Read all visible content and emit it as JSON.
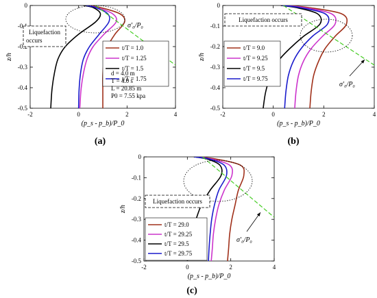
{
  "figure": {
    "panel_labels": [
      "(a)",
      "(b)",
      "(c)"
    ]
  },
  "chart_data": [
    {
      "panel": "(a)",
      "type": "line",
      "xlabel": "(p_s - p_b)/P_0",
      "ylabel": "z/h",
      "xlim": [
        -2,
        4
      ],
      "ylim": [
        -0.5,
        0
      ],
      "xticks": [
        -2,
        0,
        2,
        4
      ],
      "yticks": [
        0,
        -0.1,
        -0.2,
        -0.3,
        -0.4,
        -0.5
      ],
      "grid": false,
      "legend_position": "middle-right",
      "series": [
        {
          "name": "t/T = 1.0",
          "color": "#a0301a",
          "x": [
            0.4,
            0.9,
            1.7,
            1.9,
            1.5,
            1.2,
            1.05,
            1.0,
            1.0,
            1.0
          ],
          "y": [
            0,
            -0.01,
            -0.04,
            -0.08,
            -0.14,
            -0.2,
            -0.27,
            -0.34,
            -0.42,
            -0.5
          ]
        },
        {
          "name": "t/T = 1.25",
          "color": "#cc33cc",
          "x": [
            0.3,
            0.75,
            1.4,
            1.55,
            1.05,
            0.6,
            0.35,
            0.2,
            0.1,
            0.05
          ],
          "y": [
            0,
            -0.01,
            -0.04,
            -0.08,
            -0.14,
            -0.2,
            -0.26,
            -0.33,
            -0.41,
            -0.5
          ]
        },
        {
          "name": "t/T = 1.5",
          "color": "#000000",
          "x": [
            0.2,
            0.6,
            0.9,
            0.7,
            0.0,
            -0.55,
            -0.85,
            -1.0,
            -1.1,
            -1.15
          ],
          "y": [
            0,
            -0.01,
            -0.04,
            -0.08,
            -0.14,
            -0.2,
            -0.26,
            -0.33,
            -0.41,
            -0.5
          ]
        },
        {
          "name": "t/T = 1.75",
          "color": "#1a1acc",
          "x": [
            0.3,
            0.7,
            1.2,
            1.25,
            0.85,
            0.45,
            0.2,
            0.08,
            0.02,
            0.0
          ],
          "y": [
            0,
            -0.01,
            -0.04,
            -0.08,
            -0.14,
            -0.2,
            -0.26,
            -0.33,
            -0.41,
            -0.5
          ]
        },
        {
          "name": "σ'₀/P₀",
          "color": "#44cc22",
          "dashed": true,
          "x": [
            0.7,
            4.0
          ],
          "y": [
            0,
            -0.29
          ]
        }
      ],
      "annotations": [
        {
          "text": "Liquefaction occurs",
          "boxed": true
        },
        {
          "text": "σ'₀/P₀"
        }
      ],
      "parameters": [
        "d = 4.0 m",
        "T = 4.0 s",
        "L = 20.85 m",
        "P0 = 7.55 kpa"
      ]
    },
    {
      "panel": "(b)",
      "type": "line",
      "xlabel": "(p_s - p_b)/P_0",
      "ylabel": "z/h",
      "xlim": [
        -2,
        4
      ],
      "ylim": [
        -0.5,
        0
      ],
      "xticks": [
        -2,
        0,
        2,
        4
      ],
      "yticks": [
        0,
        -0.1,
        -0.2,
        -0.3,
        -0.4,
        -0.5
      ],
      "grid": false,
      "legend_position": "middle-left",
      "series": [
        {
          "name": "t/T = 9.0",
          "color": "#a0301a",
          "x": [
            0.5,
            1.4,
            2.7,
            2.9,
            2.45,
            2.05,
            1.8,
            1.6,
            1.5,
            1.45
          ],
          "y": [
            0,
            -0.01,
            -0.04,
            -0.09,
            -0.15,
            -0.21,
            -0.27,
            -0.34,
            -0.42,
            -0.5
          ]
        },
        {
          "name": "t/T = 9.25",
          "color": "#cc33cc",
          "x": [
            0.4,
            1.2,
            2.3,
            2.45,
            1.95,
            1.5,
            1.2,
            1.0,
            0.9,
            0.85
          ],
          "y": [
            0,
            -0.01,
            -0.04,
            -0.09,
            -0.15,
            -0.21,
            -0.27,
            -0.34,
            -0.42,
            -0.5
          ]
        },
        {
          "name": "t/T = 9.5",
          "color": "#000000",
          "x": [
            0.3,
            0.9,
            1.75,
            1.85,
            1.2,
            0.65,
            0.2,
            -0.1,
            -0.3,
            -0.4
          ],
          "y": [
            0,
            -0.01,
            -0.04,
            -0.09,
            -0.15,
            -0.21,
            -0.27,
            -0.34,
            -0.42,
            -0.5
          ]
        },
        {
          "name": "t/T = 9.75",
          "color": "#1a1acc",
          "x": [
            0.35,
            1.05,
            2.05,
            2.15,
            1.55,
            1.1,
            0.8,
            0.6,
            0.5,
            0.45
          ],
          "y": [
            0,
            -0.01,
            -0.04,
            -0.09,
            -0.15,
            -0.21,
            -0.27,
            -0.34,
            -0.42,
            -0.5
          ]
        },
        {
          "name": "σ'₀/P₀",
          "color": "#44cc22",
          "dashed": true,
          "x": [
            0.4,
            4.0
          ],
          "y": [
            0,
            -0.29
          ]
        }
      ],
      "annotations": [
        {
          "text": "Liquefaction occurs",
          "boxed": true
        },
        {
          "text": "σ'₀/P₀"
        }
      ]
    },
    {
      "panel": "(c)",
      "type": "line",
      "xlabel": "(p_s - p_b)/P_0",
      "ylabel": "z/h",
      "xlim": [
        -2,
        4
      ],
      "ylim": [
        -0.5,
        0
      ],
      "xticks": [
        -2,
        0,
        2,
        4
      ],
      "yticks": [
        0,
        -0.1,
        -0.2,
        -0.3,
        -0.4,
        -0.5
      ],
      "grid": false,
      "legend_position": "lower-left",
      "series": [
        {
          "name": "t/T = 29.0",
          "color": "#a0301a",
          "x": [
            0.4,
            1.3,
            2.45,
            2.6,
            2.35,
            2.2,
            2.05,
            1.95,
            1.9,
            1.85
          ],
          "y": [
            0,
            -0.01,
            -0.04,
            -0.09,
            -0.16,
            -0.23,
            -0.3,
            -0.37,
            -0.44,
            -0.5
          ]
        },
        {
          "name": "t/T = 29.25",
          "color": "#cc33cc",
          "x": [
            0.35,
            1.1,
            1.95,
            2.05,
            1.7,
            1.45,
            1.3,
            1.2,
            1.15,
            1.1
          ],
          "y": [
            0,
            -0.01,
            -0.04,
            -0.09,
            -0.16,
            -0.23,
            -0.3,
            -0.37,
            -0.44,
            -0.5
          ]
        },
        {
          "name": "t/T = 29.5",
          "color": "#000000",
          "x": [
            0.3,
            0.9,
            1.5,
            1.55,
            1.05,
            0.65,
            0.4,
            0.2,
            0.08,
            0.0
          ],
          "y": [
            0,
            -0.01,
            -0.04,
            -0.09,
            -0.16,
            -0.23,
            -0.3,
            -0.37,
            -0.44,
            -0.5
          ]
        },
        {
          "name": "t/T = 29.75",
          "color": "#1a1acc",
          "x": [
            0.32,
            1.0,
            1.7,
            1.8,
            1.45,
            1.25,
            1.12,
            1.05,
            1.0,
            0.97
          ],
          "y": [
            0,
            -0.01,
            -0.04,
            -0.09,
            -0.16,
            -0.23,
            -0.3,
            -0.37,
            -0.44,
            -0.5
          ]
        },
        {
          "name": "σ'₀/P₀",
          "color": "#44cc22",
          "dashed": true,
          "x": [
            0.7,
            4.0
          ],
          "y": [
            0,
            -0.29
          ]
        }
      ],
      "annotations": [
        {
          "text": "Liquefaction occurs",
          "boxed": true
        },
        {
          "text": "σ'₀/P₀"
        }
      ]
    }
  ]
}
